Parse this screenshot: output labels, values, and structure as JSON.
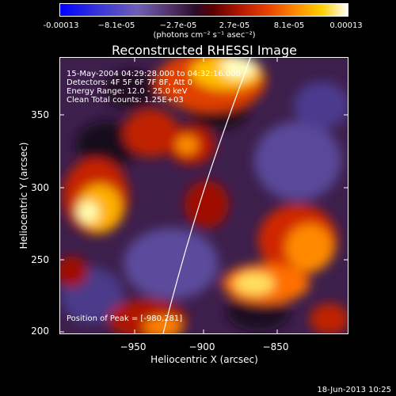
{
  "colorbar": {
    "ticks": [
      "-0.00013",
      "−8.1e-05",
      "−2.7e-05",
      "2.7e-05",
      "8.1e-05",
      "0.00013"
    ],
    "units": "(photons cm⁻² s⁻¹ asec⁻²)"
  },
  "title": "Reconstructed RHESSI Image",
  "info": {
    "time": "15-May-2004 04:29:28.000 to 04:32:16.000",
    "detectors": "Detectors: 4F 5F 6F 7F 8F, Att 0",
    "energy": "Energy Range: 12.0 - 25.0 keV",
    "method": "Clean     Total counts: 1.25E+03",
    "peak": "Position of Peak = [-980,281]"
  },
  "axes": {
    "xlabel": "Heliocentric X (arcsec)",
    "ylabel": "Heliocentric Y (arcsec)",
    "xticks": [
      "−950",
      "−900",
      "−850"
    ],
    "yticks": [
      "350",
      "300",
      "250",
      "200"
    ],
    "xlim": [
      -997,
      -807
    ],
    "ylim": [
      196,
      379
    ]
  },
  "footer": {
    "date": "18-Jun-2013 10:25"
  }
}
